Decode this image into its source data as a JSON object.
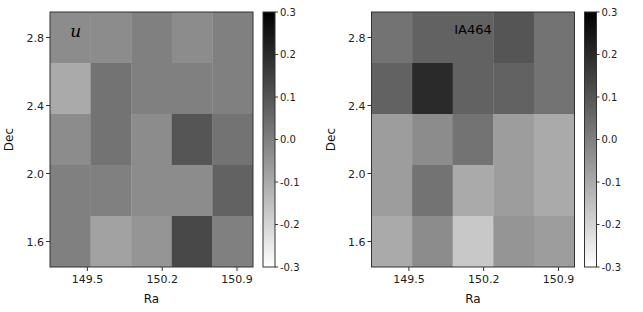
{
  "chart_data": [
    {
      "type": "heatmap",
      "xlabel": "Ra",
      "ylabel": "Dec",
      "annotation": "u",
      "values": [
        [
          -0.03,
          -0.03,
          0.0,
          -0.03,
          0.0
        ],
        [
          -0.1,
          0.03,
          0.0,
          0.0,
          0.0
        ],
        [
          -0.03,
          0.03,
          -0.03,
          0.1,
          0.03
        ],
        [
          0.0,
          0.0,
          -0.03,
          -0.03,
          0.07
        ],
        [
          0.0,
          -0.08,
          -0.05,
          0.13,
          0.0
        ]
      ],
      "xlim": [
        149.15,
        151.05
      ],
      "ylim": [
        1.45,
        2.95
      ],
      "xticks": [
        149.5,
        150.2,
        150.9
      ],
      "yticks": [
        1.6,
        {
          "value": 2.0,
          "label": "2.0"
        },
        2.4,
        2.8
      ],
      "colorbar_range": [
        -0.3,
        0.3
      ],
      "colorbar_ticks": [
        0.3,
        0.2,
        0.1,
        {
          "value": 0.0,
          "label": "0.0"
        },
        -0.1,
        -0.2,
        -0.3
      ]
    },
    {
      "type": "heatmap",
      "xlabel": "Ra",
      "ylabel": "Dec",
      "annotation": "IA464",
      "values": [
        [
          0.03,
          0.07,
          0.07,
          0.1,
          0.03
        ],
        [
          0.07,
          0.2,
          0.07,
          0.07,
          0.03
        ],
        [
          -0.07,
          -0.03,
          0.03,
          -0.07,
          -0.1
        ],
        [
          -0.07,
          0.03,
          -0.1,
          -0.07,
          -0.1
        ],
        [
          -0.1,
          -0.03,
          -0.17,
          -0.05,
          -0.07
        ]
      ],
      "xlim": [
        149.15,
        151.05
      ],
      "ylim": [
        1.45,
        2.95
      ],
      "xticks": [
        149.5,
        150.2,
        150.9
      ],
      "yticks": [
        1.6,
        {
          "value": 2.0,
          "label": "2.0"
        },
        2.4,
        2.8
      ],
      "colorbar_range": [
        -0.3,
        0.3
      ],
      "colorbar_ticks": [
        0.3,
        0.2,
        0.1,
        {
          "value": 0.0,
          "label": "0.0"
        },
        -0.1,
        -0.2,
        -0.3
      ]
    }
  ]
}
